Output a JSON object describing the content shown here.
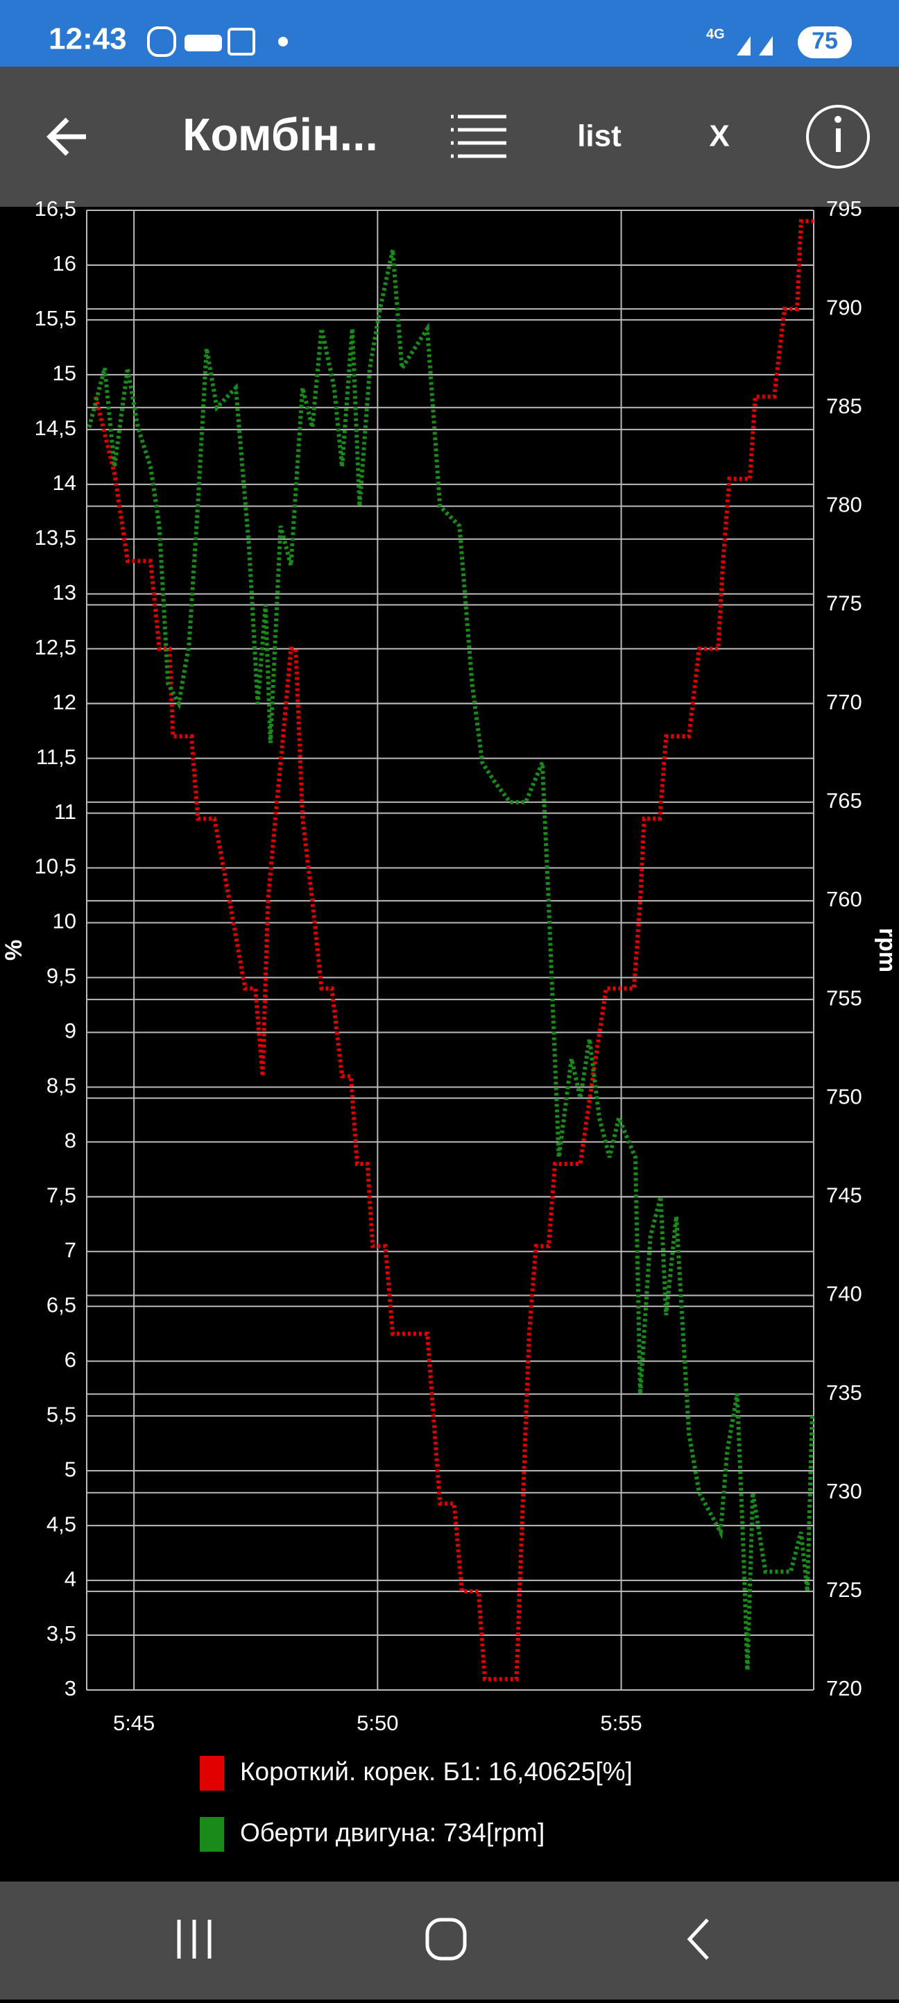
{
  "status_bar": {
    "time": "12:43",
    "network": "4G",
    "battery": "75"
  },
  "toolbar": {
    "title": "Комбін...",
    "list_button": "list",
    "close_button": "X"
  },
  "chart_data": {
    "type": "line",
    "y_label": "%",
    "y2_label": "rpm",
    "grid": true,
    "xlim": [
      344.03,
      358.95
    ],
    "xticks": [
      {
        "value": 345,
        "label": "5:45"
      },
      {
        "value": 350,
        "label": "5:50"
      },
      {
        "value": 355,
        "label": "5:55"
      }
    ],
    "ylim": [
      3,
      16.5
    ],
    "yticks": [
      3,
      {
        "value": 3.5,
        "label": "3,5"
      },
      4,
      {
        "value": 4.5,
        "label": "4,5"
      },
      5,
      {
        "value": 5.5,
        "label": "5,5"
      },
      6,
      {
        "value": 6.5,
        "label": "6,5"
      },
      7,
      {
        "value": 7.5,
        "label": "7,5"
      },
      8,
      {
        "value": 8.5,
        "label": "8,5"
      },
      9,
      {
        "value": 9.5,
        "label": "9,5"
      },
      10,
      {
        "value": 10.5,
        "label": "10,5"
      },
      11,
      {
        "value": 11.5,
        "label": "11,5"
      },
      12,
      {
        "value": 12.5,
        "label": "12,5"
      },
      13,
      {
        "value": 13.5,
        "label": "13,5"
      },
      14,
      {
        "value": 14.5,
        "label": "14,5"
      },
      15,
      {
        "value": 15.5,
        "label": "15,5"
      },
      16,
      {
        "value": 16.5,
        "label": "16,5"
      }
    ],
    "y2lim": [
      720,
      795
    ],
    "y2ticks": [
      720,
      725,
      730,
      735,
      740,
      745,
      750,
      755,
      760,
      765,
      770,
      775,
      780,
      785,
      790,
      795
    ],
    "series": [
      {
        "name": "Короткий. корек. Б1: 16,40625[%]",
        "color": "#e00000",
        "x": [
          344.21,
          344.6,
          344.87,
          345.34,
          345.52,
          345.73,
          345.8,
          346.18,
          346.31,
          346.65,
          346.96,
          347.28,
          347.49,
          347.64,
          347.75,
          347.9,
          348.06,
          348.22,
          348.32,
          348.46,
          348.66,
          348.85,
          349.06,
          349.27,
          349.45,
          349.58,
          349.79,
          349.9,
          350.16,
          350.31,
          351.02,
          351.28,
          351.57,
          351.73,
          352.07,
          352.2,
          352.85,
          352.98,
          353.11,
          353.25,
          353.51,
          353.64,
          354.16,
          354.42,
          354.69,
          355.26,
          355.39,
          355.47,
          355.79,
          355.92,
          356.39,
          356.6,
          356.99,
          357.09,
          357.22,
          357.64,
          357.75,
          358.14,
          358.35,
          358.61,
          358.69,
          358.95
        ],
        "values": [
          14.8,
          14.1,
          13.3,
          13.3,
          12.5,
          12.5,
          11.7,
          11.7,
          10.95,
          10.95,
          10.2,
          9.4,
          9.4,
          8.6,
          10.2,
          10.95,
          11.7,
          12.5,
          12.5,
          10.95,
          10.2,
          9.4,
          9.4,
          8.6,
          8.6,
          7.8,
          7.8,
          7.05,
          7.05,
          6.25,
          6.25,
          4.7,
          4.7,
          3.9,
          3.9,
          3.1,
          3.1,
          4.7,
          6.25,
          7.05,
          7.05,
          7.8,
          7.8,
          8.6,
          9.4,
          9.4,
          10.2,
          10.95,
          10.95,
          11.7,
          11.7,
          12.5,
          12.5,
          13.3,
          14.05,
          14.05,
          14.8,
          14.8,
          15.6,
          15.6,
          16.4,
          16.4
        ]
      },
      {
        "name": "Оберти двигуна: 734[rpm]",
        "color": "#1a8a1a",
        "axis": "y2",
        "x": [
          344.08,
          344.4,
          344.6,
          344.87,
          345.08,
          345.34,
          345.52,
          345.7,
          345.92,
          346.13,
          346.31,
          346.49,
          346.7,
          347.09,
          347.36,
          347.54,
          347.7,
          347.8,
          348.01,
          348.22,
          348.46,
          348.66,
          348.85,
          349.11,
          349.27,
          349.48,
          349.63,
          349.84,
          350.05,
          350.31,
          350.5,
          350.76,
          351.02,
          351.28,
          351.68,
          351.94,
          352.15,
          352.41,
          352.72,
          353.04,
          353.38,
          353.51,
          353.72,
          353.98,
          354.16,
          354.35,
          354.55,
          354.76,
          354.95,
          355.29,
          355.39,
          355.6,
          355.81,
          355.92,
          356.13,
          356.39,
          356.6,
          357.04,
          357.17,
          357.38,
          357.51,
          357.59,
          357.7,
          357.96,
          358.27,
          358.48,
          358.69,
          358.82,
          358.92
        ],
        "values": [
          784,
          787,
          782,
          787,
          784,
          782,
          779,
          771,
          770,
          773,
          780,
          788,
          785,
          786,
          778,
          770,
          775,
          768,
          779,
          777,
          786,
          784,
          789,
          786,
          782,
          789,
          780,
          787,
          790,
          793,
          787,
          788,
          789,
          780,
          779,
          771,
          767,
          766,
          765,
          765,
          767,
          760,
          747,
          752,
          750,
          753,
          749,
          747,
          749,
          747,
          735,
          743,
          745,
          739,
          744,
          733,
          730,
          728,
          732,
          735,
          727,
          721,
          730,
          726,
          726,
          726,
          728,
          725,
          734
        ]
      }
    ]
  }
}
